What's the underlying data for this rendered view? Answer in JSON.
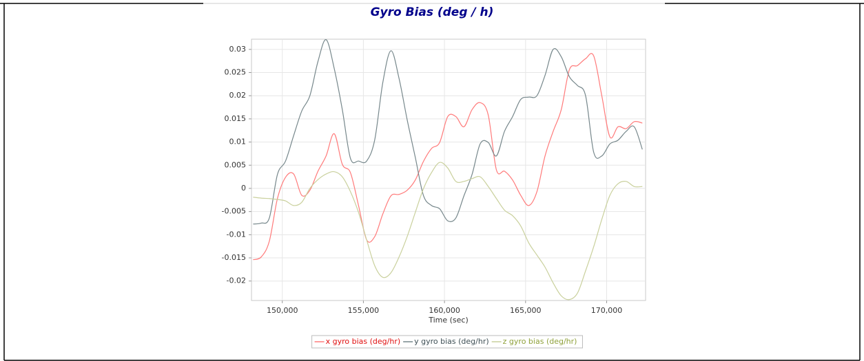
{
  "chart_data": {
    "type": "line",
    "title": "Gyro Bias (deg / h)",
    "x_label": "Time (sec)",
    "xlim": [
      148100,
      172400
    ],
    "xticks": [
      {
        "value": 150000,
        "label": "150,000"
      },
      {
        "value": 155000,
        "label": "155,000"
      },
      {
        "value": 160000,
        "label": "160,000"
      },
      {
        "value": 165000,
        "label": "165,000"
      },
      {
        "value": 170000,
        "label": "170,000"
      }
    ],
    "ylim": [
      -0.0242,
      0.0322
    ],
    "yticks": [
      -0.02,
      -0.015,
      -0.01,
      -0.005,
      0,
      0.005,
      0.01,
      0.015,
      0.02,
      0.025,
      0.03
    ],
    "grid": true,
    "legend": "bottom",
    "x": [
      148200,
      148700,
      149200,
      149700,
      150200,
      150700,
      151200,
      151700,
      152200,
      152700,
      153200,
      153700,
      154200,
      154700,
      155200,
      155700,
      156200,
      156700,
      157200,
      157700,
      158200,
      158700,
      159200,
      159700,
      160200,
      160700,
      161200,
      161700,
      162200,
      162700,
      163200,
      163700,
      164200,
      164700,
      165200,
      165700,
      166200,
      166700,
      167200,
      167700,
      168200,
      168700,
      169200,
      169700,
      170200,
      170700,
      171200,
      171700,
      172200
    ],
    "series": [
      {
        "name": "x gyro bias (deg/hr)",
        "color": "#ff7a7a",
        "values": [
          -0.0154,
          -0.0148,
          -0.0114,
          -0.0022,
          0.0024,
          0.0031,
          -0.0015,
          -0.0004,
          0.0037,
          0.007,
          0.0118,
          0.0052,
          0.0034,
          -0.0037,
          -0.0111,
          -0.0104,
          -0.0055,
          -0.0016,
          -0.0013,
          -0.0004,
          0.0018,
          0.0058,
          0.0086,
          0.0099,
          0.0155,
          0.0155,
          0.0133,
          0.017,
          0.0185,
          0.0158,
          0.004,
          0.0037,
          0.0018,
          -0.0015,
          -0.0037,
          -0.0007,
          0.007,
          0.0123,
          0.017,
          0.0256,
          0.0265,
          0.028,
          0.0286,
          0.02,
          0.0111,
          0.0133,
          0.0129,
          0.0144,
          0.0141
        ]
      },
      {
        "name": "y gyro bias (deg/hr)",
        "color": "#76878b",
        "values": [
          -0.0077,
          -0.0075,
          -0.0064,
          0.003,
          0.0059,
          0.0114,
          0.0167,
          0.02,
          0.0274,
          0.0321,
          0.0259,
          0.017,
          0.0065,
          0.0059,
          0.0059,
          0.0105,
          0.0229,
          0.0297,
          0.0237,
          0.0148,
          0.0067,
          -0.0015,
          -0.0037,
          -0.0044,
          -0.007,
          -0.0064,
          -0.0016,
          0.003,
          0.0096,
          0.0099,
          0.007,
          0.0123,
          0.0155,
          0.0192,
          0.0197,
          0.02,
          0.0244,
          0.03,
          0.0284,
          0.0241,
          0.0222,
          0.02,
          0.0078,
          0.007,
          0.0096,
          0.0104,
          0.0123,
          0.0133,
          0.0084
        ]
      },
      {
        "name": "z gyro bias (deg/hr)",
        "color": "#c9d09c",
        "values": [
          -0.0019,
          -0.0021,
          -0.0022,
          -0.0024,
          -0.0027,
          -0.0037,
          -0.003,
          0.0,
          0.0019,
          0.0031,
          0.0036,
          0.0025,
          -0.0007,
          -0.0052,
          -0.0111,
          -0.0167,
          -0.0192,
          -0.0182,
          -0.0148,
          -0.0104,
          -0.0052,
          -0.0001,
          0.0034,
          0.0056,
          0.0044,
          0.0015,
          0.0015,
          0.0021,
          0.0025,
          0.0004,
          -0.0022,
          -0.0047,
          -0.0059,
          -0.0081,
          -0.0118,
          -0.0144,
          -0.017,
          -0.0204,
          -0.0232,
          -0.024,
          -0.0226,
          -0.0178,
          -0.0126,
          -0.0067,
          -0.0015,
          0.001,
          0.0015,
          0.0004,
          0.0004
        ]
      }
    ]
  }
}
